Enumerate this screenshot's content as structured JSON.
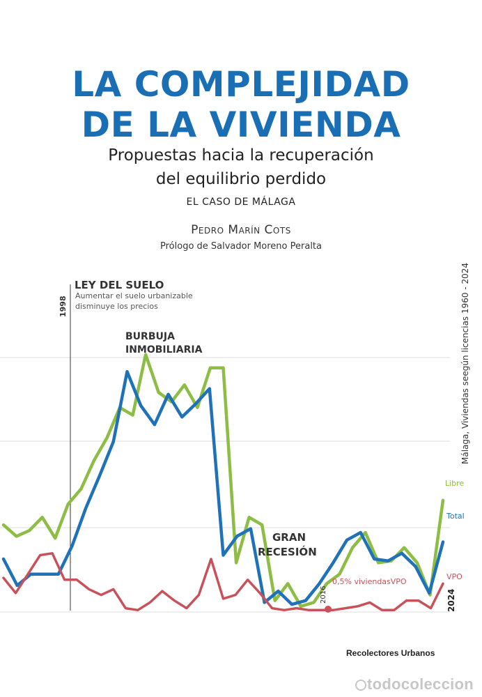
{
  "cover": {
    "title_line1": "LA COMPLEJIDAD",
    "title_line2": "DE LA VIVIENDA",
    "subtitle_line1": "Propuestas hacia la recuperación",
    "subtitle_line2": "del equilibrio perdido",
    "case": "EL CASO DE MÁLAGA",
    "author": "Pedro Marín Cots",
    "prologue": "Prólogo de Salvador Moreno Peralta",
    "publisher": "Recolectores Urbanos",
    "watermark": "todocoleccion"
  },
  "colors": {
    "title": "#1a6fb4",
    "libre": "#8dbd45",
    "total": "#1f72b8",
    "vpo": "#c9525a"
  },
  "chart_data": {
    "type": "line",
    "title": "Málaga, Viviendas seegún licencias 1960 - 2024",
    "year_start_label": "1998",
    "year_end_label": "2024",
    "year_2016_label": "2016",
    "annotations": {
      "ley_title": "LEY DEL SUELO",
      "ley_line1": "Aumentar el suelo urbanizable",
      "ley_line2": "disminuye los precios",
      "burbuja_line1": "BURBUJA",
      "burbuja_line2": "INMOBILIARIA",
      "recesion_line1": "GRAN",
      "recesion_line2": "RECESIÓN",
      "vpo_note": "0,5% viviendasVPO"
    },
    "series": [
      {
        "name": "Libre",
        "values": [
          46,
          40,
          43,
          50,
          39,
          57,
          65,
          80,
          92,
          108,
          104,
          136,
          116,
          111,
          120,
          108,
          129,
          129,
          26,
          50,
          46,
          6,
          15,
          3,
          5,
          15,
          20,
          34,
          42,
          26,
          27,
          34,
          26,
          9,
          59
        ]
      },
      {
        "name": "Total",
        "values": [
          28,
          14,
          20,
          20,
          20,
          35,
          55,
          72,
          90,
          127,
          109,
          99,
          115,
          103,
          110,
          118,
          30,
          40,
          44,
          5,
          11,
          4,
          6,
          15,
          26,
          38,
          42,
          28,
          27,
          31,
          24,
          10,
          37
        ]
      },
      {
        "name": "VPO",
        "values": [
          18,
          10,
          20,
          30,
          31,
          17,
          17,
          12,
          9,
          12,
          2,
          1,
          5,
          11,
          6,
          2,
          9,
          28,
          7,
          9,
          17,
          10,
          2,
          1,
          2,
          1,
          1,
          1,
          2,
          3,
          5,
          1,
          1,
          6,
          6,
          2,
          15
        ]
      }
    ]
  }
}
